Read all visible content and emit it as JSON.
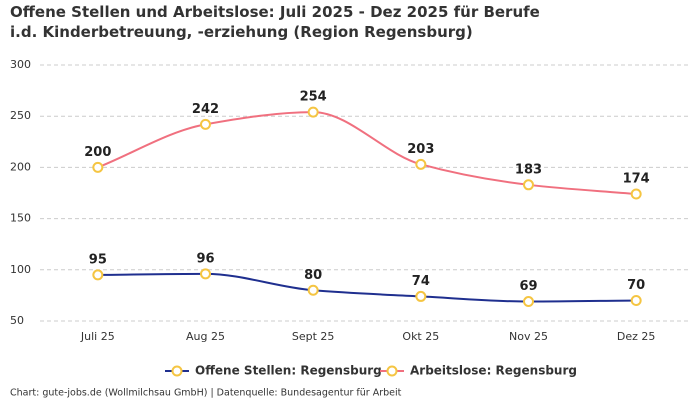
{
  "chart_data": {
    "type": "line",
    "title": "Offene Stellen und Arbeitslose: Juli 2025 - Dez 2025 für Berufe i.d. Kinderbetreuung, -erziehung (Region Regensburg)",
    "categories": [
      "Juli 25",
      "Aug 25",
      "Sept 25",
      "Okt 25",
      "Nov 25",
      "Dez 25"
    ],
    "series": [
      {
        "name": "Offene Stellen: Regensburg",
        "color": "#1f2f8f",
        "values": [
          95,
          96,
          80,
          74,
          69,
          70
        ]
      },
      {
        "name": "Arbeitslose: Regensburg",
        "color": "#f0707f",
        "values": [
          200,
          242,
          254,
          203,
          183,
          174
        ]
      }
    ],
    "marker_color": "#f5c542",
    "ylim": [
      50,
      300
    ],
    "yticks": [
      50,
      100,
      150,
      200,
      250,
      300
    ],
    "grid": true,
    "footer": "Chart: gute-jobs.de (Wollmilchsau GmbH) | Datenquelle: Bundesagentur für Arbeit"
  }
}
